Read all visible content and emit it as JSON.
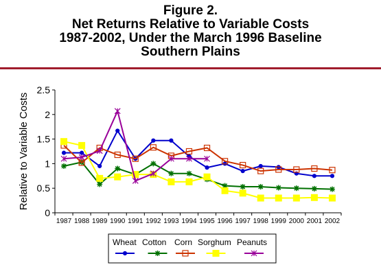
{
  "title": {
    "line1": "Figure 2.",
    "line2": "Net Returns Relative to Variable Costs",
    "line3": "1987-2002, Under the March 1996 Baseline",
    "line4": "Southern Plains"
  },
  "colors": {
    "rule": "#a01c2c",
    "wheat": "#0000cc",
    "cotton": "#007000",
    "corn": "#cc3300",
    "sorghum": "#ffff00",
    "peanuts": "#990099"
  },
  "chart_data": {
    "type": "line",
    "ylabel": "Relative to Variable Costs",
    "xlabel": "",
    "ylim": [
      0,
      2.5
    ],
    "yticks": [
      "0",
      "0.5",
      "1",
      "1.5",
      "2",
      "2.5"
    ],
    "ytick_values": [
      0,
      0.5,
      1,
      1.5,
      2,
      2.5
    ],
    "categories": [
      "1987",
      "1988",
      "1989",
      "1990",
      "1991",
      "1992",
      "1993",
      "1994",
      "1995",
      "1996",
      "1997",
      "1998",
      "1999",
      "2000",
      "2001",
      "2002"
    ],
    "legend_position": "bottom",
    "series": [
      {
        "name": "Wheat",
        "color": "#0000cc",
        "marker": "dot",
        "values": [
          1.22,
          1.22,
          0.95,
          1.67,
          1.1,
          1.47,
          1.47,
          1.15,
          0.92,
          1.0,
          0.85,
          0.95,
          0.93,
          0.8,
          0.75,
          0.75
        ]
      },
      {
        "name": "Cotton",
        "color": "#007000",
        "marker": "star",
        "values": [
          0.95,
          1.03,
          0.58,
          0.9,
          0.78,
          1.0,
          0.8,
          0.8,
          0.68,
          0.55,
          0.53,
          0.53,
          0.51,
          0.5,
          0.49,
          0.48
        ]
      },
      {
        "name": "Corn",
        "color": "#cc3300",
        "marker": "square",
        "values": [
          1.37,
          1.02,
          1.32,
          1.18,
          1.1,
          1.33,
          1.16,
          1.25,
          1.32,
          1.05,
          0.97,
          0.85,
          0.88,
          0.88,
          0.9,
          0.87
        ]
      },
      {
        "name": "Sorghum",
        "color": "#ffff00",
        "marker": "filled-square",
        "values": [
          1.45,
          1.37,
          0.7,
          0.73,
          0.78,
          0.78,
          0.63,
          0.63,
          0.73,
          0.45,
          0.4,
          0.3,
          0.3,
          0.3,
          0.31,
          0.3
        ]
      },
      {
        "name": "Peanuts",
        "color": "#990099",
        "marker": "asterisk",
        "values": [
          1.1,
          1.13,
          1.26,
          2.07,
          0.65,
          0.8,
          1.1,
          1.1,
          1.1,
          null,
          null,
          null,
          null,
          null,
          null,
          null
        ]
      }
    ]
  }
}
